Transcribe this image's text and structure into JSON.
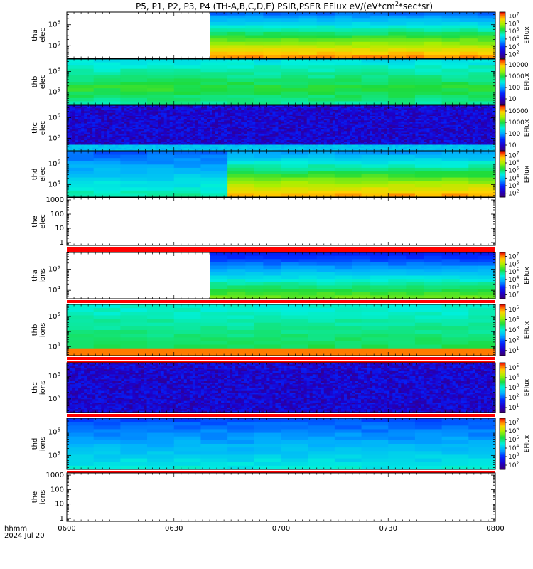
{
  "title": "P5, P1, P2, P3, P4 (TH-A,B,C,D,E) PSIR,PSER EFlux eV/(eV*cm",
  "title_sup": "2",
  "title_end": "*sec*sr)",
  "time_label": "hhmm",
  "date_label": "2024 Jul 20",
  "colors": {
    "gap": "#ffffff",
    "flag_red": "#ff0000",
    "frame": "#000000"
  },
  "chart_data": {
    "type": "heatmap",
    "x_ticks": [
      "0600",
      "0630",
      "0700",
      "0730",
      "0800"
    ],
    "x_range": [
      0,
      120
    ],
    "panels": [
      {
        "id": "tha-elec",
        "label1": "tha",
        "label2": "elec",
        "kind": "spectrogram",
        "pattern": "smooth",
        "y_ticks": [
          {
            "t": "10",
            "s": "5",
            "v": 5
          },
          {
            "t": "10",
            "s": "6",
            "v": 6
          }
        ],
        "ylog": [
          4.4,
          6.6
        ],
        "data_start": 40,
        "flagbar": false,
        "colorbar": {
          "label": "EFlux",
          "ticks": [
            {
              "t": "10",
              "s": "2",
              "v": 2
            },
            {
              "t": "10",
              "s": "3",
              "v": 3
            },
            {
              "t": "10",
              "s": "4",
              "v": 4
            },
            {
              "t": "10",
              "s": "5",
              "v": 5
            },
            {
              "t": "10",
              "s": "6",
              "v": 6
            },
            {
              "t": "10",
              "s": "7",
              "v": 7
            }
          ],
          "range": [
            1.5,
            7.5
          ]
        }
      },
      {
        "id": "thb-elec",
        "label1": "thb",
        "label2": "elec",
        "kind": "spectrogram",
        "pattern": "smooth_green",
        "y_ticks": [
          {
            "t": "10",
            "s": "5",
            "v": 5
          },
          {
            "t": "10",
            "s": "6",
            "v": 6
          }
        ],
        "ylog": [
          4.4,
          6.6
        ],
        "data_start": 0,
        "flagbar": false,
        "colorbar": {
          "label": "EFlux",
          "ticks": [
            {
              "t": "10",
              "s": "",
              "v": 1
            },
            {
              "t": "100",
              "s": "",
              "v": 2
            },
            {
              "t": "1000",
              "s": "",
              "v": 3
            },
            {
              "t": "10000",
              "s": "",
              "v": 4
            }
          ],
          "range": [
            0.5,
            4.5
          ]
        }
      },
      {
        "id": "thc-elec",
        "label1": "thc",
        "label2": "elec",
        "kind": "spectrogram",
        "pattern": "noisy",
        "y_ticks": [
          {
            "t": "10",
            "s": "5",
            "v": 5
          },
          {
            "t": "10",
            "s": "6",
            "v": 6
          }
        ],
        "ylog": [
          4.4,
          6.6
        ],
        "data_start": 0,
        "flagbar": false,
        "colorbar": {
          "label": "EFlux",
          "ticks": [
            {
              "t": "10",
              "s": "",
              "v": 1
            },
            {
              "t": "100",
              "s": "",
              "v": 2
            },
            {
              "t": "1000",
              "s": "",
              "v": 3
            },
            {
              "t": "10000",
              "s": "",
              "v": 4
            }
          ],
          "range": [
            0.5,
            4.5
          ]
        }
      },
      {
        "id": "thd-elec",
        "label1": "thd",
        "label2": "elec",
        "kind": "spectrogram",
        "pattern": "smooth_d",
        "y_ticks": [
          {
            "t": "10",
            "s": "5",
            "v": 5
          },
          {
            "t": "10",
            "s": "6",
            "v": 6
          }
        ],
        "ylog": [
          4.4,
          6.6
        ],
        "data_start": 0,
        "flagbar": false,
        "colorbar": {
          "label": "EFlux",
          "ticks": [
            {
              "t": "10",
              "s": "2",
              "v": 2
            },
            {
              "t": "10",
              "s": "3",
              "v": 3
            },
            {
              "t": "10",
              "s": "4",
              "v": 4
            },
            {
              "t": "10",
              "s": "5",
              "v": 5
            },
            {
              "t": "10",
              "s": "6",
              "v": 6
            },
            {
              "t": "10",
              "s": "7",
              "v": 7
            }
          ],
          "range": [
            1.5,
            7.5
          ]
        }
      },
      {
        "id": "the-elec",
        "label1": "the",
        "label2": "elec",
        "kind": "empty",
        "y_ticks": [
          {
            "t": "1",
            "s": "",
            "v": 0
          },
          {
            "t": "10",
            "s": "",
            "v": 1
          },
          {
            "t": "100",
            "s": "",
            "v": 2
          },
          {
            "t": "1000",
            "s": "",
            "v": 3
          }
        ],
        "ylog": [
          -0.2,
          3.15
        ],
        "flagbar": true,
        "colorbar": null
      },
      {
        "id": "tha-ions",
        "label1": "tha",
        "label2": "ions",
        "kind": "spectrogram",
        "pattern": "ions_a",
        "y_ticks": [
          {
            "t": "10",
            "s": "4",
            "v": 4
          },
          {
            "t": "10",
            "s": "5",
            "v": 5
          }
        ],
        "ylog": [
          3.6,
          5.8
        ],
        "data_start": 40,
        "flagbar": true,
        "colorbar": {
          "label": "EFlux",
          "ticks": [
            {
              "t": "10",
              "s": "2",
              "v": 2
            },
            {
              "t": "10",
              "s": "3",
              "v": 3
            },
            {
              "t": "10",
              "s": "4",
              "v": 4
            },
            {
              "t": "10",
              "s": "5",
              "v": 5
            },
            {
              "t": "10",
              "s": "6",
              "v": 6
            },
            {
              "t": "10",
              "s": "7",
              "v": 7
            }
          ],
          "range": [
            1.5,
            7.5
          ]
        }
      },
      {
        "id": "thb-ions",
        "label1": "thb",
        "label2": "ions",
        "kind": "spectrogram",
        "pattern": "ions_b",
        "y_ticks": [
          {
            "t": "10",
            "s": "3",
            "v": 3
          },
          {
            "t": "10",
            "s": "5",
            "v": 5
          }
        ],
        "ylog": [
          2.4,
          5.8
        ],
        "data_start": 0,
        "flagbar": true,
        "colorbar": {
          "label": "EFlux",
          "ticks": [
            {
              "t": "10",
              "s": "1",
              "v": 1
            },
            {
              "t": "10",
              "s": "2",
              "v": 2
            },
            {
              "t": "10",
              "s": "3",
              "v": 3
            },
            {
              "t": "10",
              "s": "4",
              "v": 4
            },
            {
              "t": "10",
              "s": "5",
              "v": 5
            }
          ],
          "range": [
            0.5,
            5.5
          ]
        }
      },
      {
        "id": "thc-ions",
        "label1": "thc",
        "label2": "ions",
        "kind": "spectrogram",
        "pattern": "noisy_ions",
        "y_ticks": [
          {
            "t": "10",
            "s": "5",
            "v": 5
          },
          {
            "t": "10",
            "s": "6",
            "v": 6
          }
        ],
        "ylog": [
          4.4,
          6.6
        ],
        "data_start": 0,
        "flagbar": true,
        "colorbar": {
          "label": "EFlux",
          "ticks": [
            {
              "t": "10",
              "s": "1",
              "v": 1
            },
            {
              "t": "10",
              "s": "2",
              "v": 2
            },
            {
              "t": "10",
              "s": "3",
              "v": 3
            },
            {
              "t": "10",
              "s": "4",
              "v": 4
            },
            {
              "t": "10",
              "s": "5",
              "v": 5
            }
          ],
          "range": [
            0.5,
            5.5
          ]
        }
      },
      {
        "id": "thd-ions",
        "label1": "thd",
        "label2": "ions",
        "kind": "spectrogram",
        "pattern": "ions_d",
        "y_ticks": [
          {
            "t": "10",
            "s": "5",
            "v": 5
          },
          {
            "t": "10",
            "s": "6",
            "v": 6
          }
        ],
        "ylog": [
          4.4,
          6.6
        ],
        "data_start": 0,
        "flagbar": true,
        "colorbar": {
          "label": "EFlux",
          "ticks": [
            {
              "t": "10",
              "s": "2",
              "v": 2
            },
            {
              "t": "10",
              "s": "3",
              "v": 3
            },
            {
              "t": "10",
              "s": "4",
              "v": 4
            },
            {
              "t": "10",
              "s": "5",
              "v": 5
            },
            {
              "t": "10",
              "s": "6",
              "v": 6
            },
            {
              "t": "10",
              "s": "7",
              "v": 7
            }
          ],
          "range": [
            1.5,
            7.5
          ]
        }
      },
      {
        "id": "the-ions",
        "label1": "the",
        "label2": "ions",
        "kind": "empty",
        "y_ticks": [
          {
            "t": "1",
            "s": "",
            "v": 0
          },
          {
            "t": "10",
            "s": "",
            "v": 1
          },
          {
            "t": "100",
            "s": "",
            "v": 2
          },
          {
            "t": "1000",
            "s": "",
            "v": 3
          }
        ],
        "ylog": [
          -0.2,
          3.15
        ],
        "flagbar": false,
        "colorbar": null
      }
    ]
  }
}
